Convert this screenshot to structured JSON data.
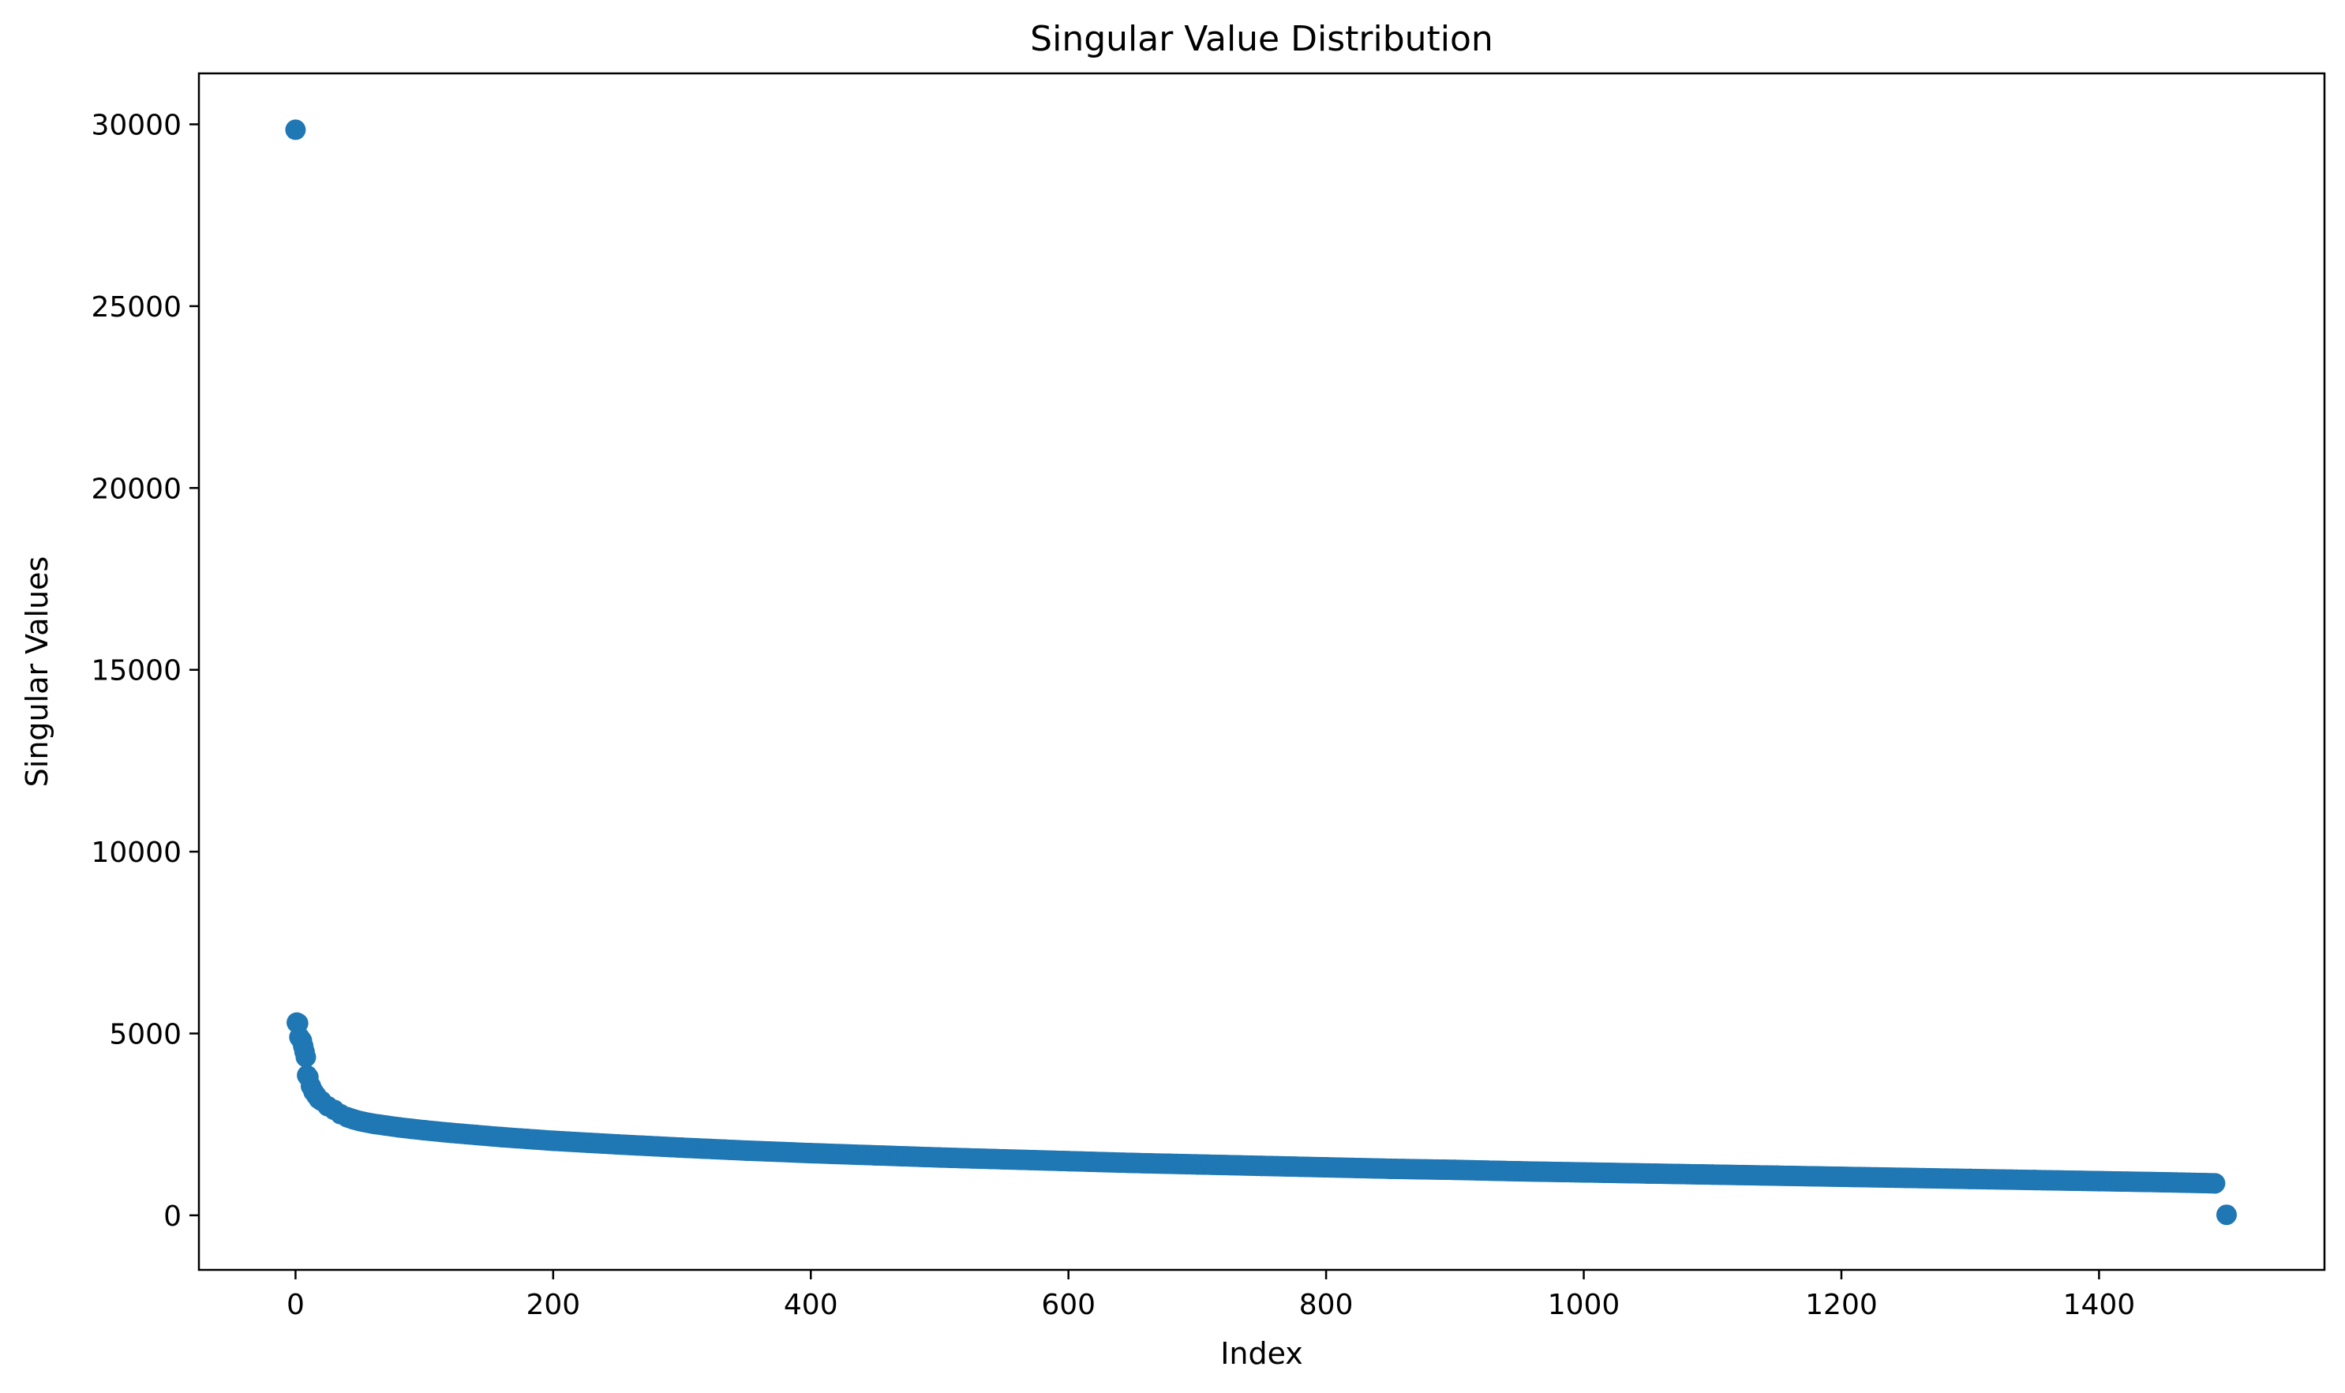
{
  "chart_data": {
    "type": "scatter",
    "title": "Singular Value Distribution",
    "xlabel": "Index",
    "ylabel": "Singular Values",
    "xlim": [
      -75,
      1575
    ],
    "ylim": [
      -1500,
      31400
    ],
    "x_ticks": [
      0,
      200,
      400,
      600,
      800,
      1000,
      1200,
      1400
    ],
    "y_ticks": [
      0,
      5000,
      10000,
      15000,
      20000,
      25000,
      30000
    ],
    "grid": false,
    "legend": "none",
    "marker_color": "#1f77b4",
    "n_points": 1500,
    "points": [
      [
        0,
        29850
      ],
      [
        1,
        5300
      ],
      [
        2,
        5280
      ],
      [
        3,
        4900
      ],
      [
        4,
        4850
      ],
      [
        5,
        4800
      ],
      [
        6,
        4650
      ],
      [
        7,
        4500
      ],
      [
        8,
        4350
      ],
      [
        9,
        3850
      ],
      [
        10,
        3800
      ],
      [
        12,
        3550
      ],
      [
        14,
        3400
      ],
      [
        16,
        3300
      ],
      [
        18,
        3200
      ],
      [
        20,
        3150
      ],
      [
        25,
        3000
      ],
      [
        30,
        2900
      ],
      [
        35,
        2780
      ],
      [
        40,
        2700
      ],
      [
        45,
        2640
      ],
      [
        50,
        2590
      ],
      [
        60,
        2520
      ],
      [
        70,
        2470
      ],
      [
        80,
        2420
      ],
      [
        90,
        2380
      ],
      [
        100,
        2340
      ],
      [
        120,
        2270
      ],
      [
        140,
        2210
      ],
      [
        160,
        2150
      ],
      [
        180,
        2100
      ],
      [
        200,
        2050
      ],
      [
        250,
        1950
      ],
      [
        300,
        1860
      ],
      [
        350,
        1780
      ],
      [
        400,
        1710
      ],
      [
        450,
        1650
      ],
      [
        500,
        1590
      ],
      [
        550,
        1540
      ],
      [
        600,
        1490
      ],
      [
        650,
        1440
      ],
      [
        700,
        1400
      ],
      [
        750,
        1360
      ],
      [
        800,
        1320
      ],
      [
        850,
        1280
      ],
      [
        900,
        1250
      ],
      [
        950,
        1210
      ],
      [
        1000,
        1180
      ],
      [
        1050,
        1150
      ],
      [
        1100,
        1120
      ],
      [
        1150,
        1090
      ],
      [
        1200,
        1060
      ],
      [
        1250,
        1030
      ],
      [
        1300,
        1000
      ],
      [
        1350,
        970
      ],
      [
        1400,
        940
      ],
      [
        1450,
        910
      ],
      [
        1490,
        880
      ],
      [
        1499,
        15
      ]
    ]
  }
}
